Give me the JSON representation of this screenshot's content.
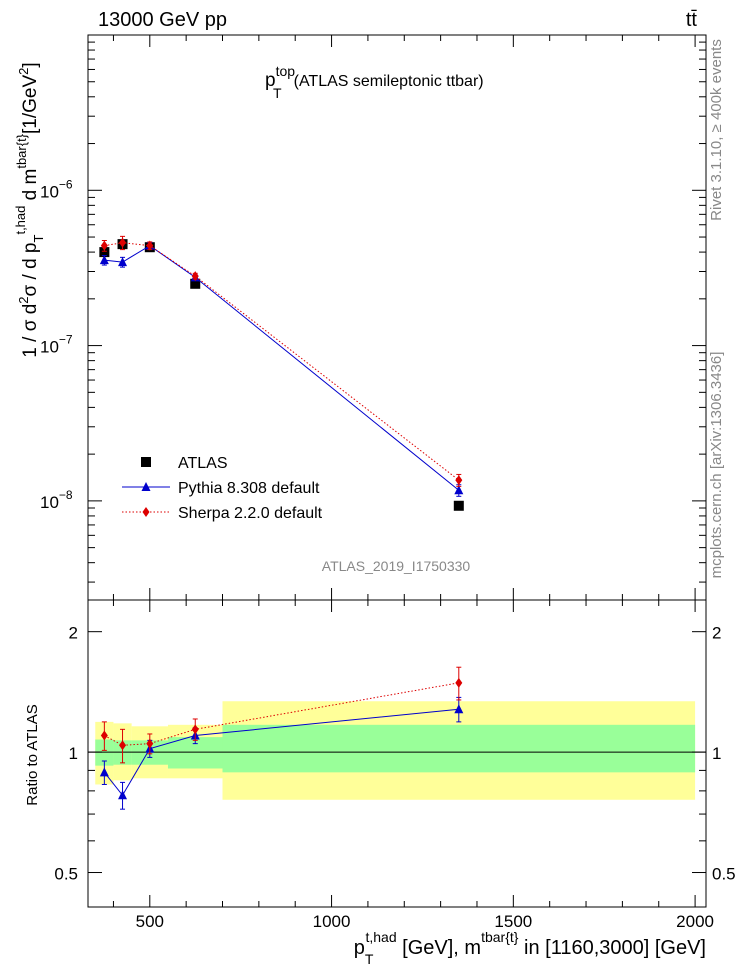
{
  "header": {
    "left": "13000 GeV pp",
    "right": "tt̄"
  },
  "side_labels": {
    "rivet": "Rivet 3.1.10, ≥ 400k events",
    "mcplots": "mcplots.cern.ch [arXiv:1306.3436]"
  },
  "title": {
    "main": "p",
    "sup": "top",
    "sub": "T",
    "rest": "(ATLAS semileptonic ttbar)"
  },
  "analysis_id": "ATLAS_2019_I1750330",
  "ylabel_main": "1 / σ d²σ / d p_T^{t,had} d m^{tbar{t}} [1/GeV²]",
  "ylabel_ratio": "Ratio to ATLAS",
  "xlabel": "p_T^{t,had} [GeV], m^{tbar{t}} in [1160,3000] [GeV]",
  "legend": [
    {
      "name": "ATLAS",
      "marker": "square",
      "color": "#000000"
    },
    {
      "name": "Pythia 8.308 default",
      "marker": "triangle",
      "color": "#0000cc"
    },
    {
      "name": "Sherpa 2.2.0 default",
      "marker": "diamond",
      "color": "#dd0000"
    }
  ],
  "chart_data": [
    {
      "type": "line",
      "panel": "main",
      "yscale": "log",
      "xlim": [
        330,
        2030
      ],
      "ylim": [
        2.3e-09,
        1e-05
      ],
      "x_ticks": [
        500,
        1000,
        1500,
        2000
      ],
      "y_ticks": [
        {
          "value": 1e-08,
          "mantissa": "10",
          "exp": "−8"
        },
        {
          "value": 1e-07,
          "mantissa": "10",
          "exp": "−7"
        },
        {
          "value": 1e-06,
          "mantissa": "10",
          "exp": "−6"
        }
      ],
      "series": [
        {
          "name": "ATLAS",
          "color": "#000000",
          "x": [
            375,
            425,
            500,
            625,
            1350
          ],
          "y": [
            4e-07,
            4.5e-07,
            4.3e-07,
            2.5e-07,
            9.3e-09
          ]
        },
        {
          "name": "Pythia 8.308 default",
          "color": "#0000cc",
          "x": [
            375,
            425,
            500,
            625,
            1350
          ],
          "y": [
            3.55e-07,
            3.45e-07,
            4.4e-07,
            2.75e-07,
            1.17e-08
          ],
          "err": [
            2.5e-08,
            2.5e-08,
            2e-08,
            1e-08,
            1e-09
          ]
        },
        {
          "name": "Sherpa 2.2.0 default",
          "color": "#dd0000",
          "x": [
            375,
            425,
            500,
            625,
            1350
          ],
          "y": [
            4.4e-07,
            4.6e-07,
            4.4e-07,
            2.8e-07,
            1.36e-08
          ],
          "err": [
            3.5e-08,
            4.5e-08,
            2.5e-08,
            1.2e-08,
            1.2e-09
          ]
        }
      ]
    },
    {
      "type": "line",
      "panel": "ratio",
      "yscale": "log",
      "xlim": [
        330,
        2030
      ],
      "ylim": [
        0.41,
        2.4
      ],
      "x_ticks": [
        500,
        1000,
        1500,
        2000
      ],
      "y_ticks": [
        0.5,
        1,
        2
      ],
      "bands": [
        {
          "x0": 350,
          "x1": 400,
          "inner": [
            0.925,
            1.075
          ],
          "outer": [
            0.83,
            1.19
          ]
        },
        {
          "x0": 400,
          "x1": 450,
          "inner": [
            0.93,
            1.07
          ],
          "outer": [
            0.85,
            1.18
          ]
        },
        {
          "x0": 450,
          "x1": 550,
          "inner": [
            0.93,
            1.07
          ],
          "outer": [
            0.86,
            1.16
          ]
        },
        {
          "x0": 550,
          "x1": 700,
          "inner": [
            0.91,
            1.09
          ],
          "outer": [
            0.86,
            1.17
          ]
        },
        {
          "x0": 700,
          "x1": 2000,
          "inner": [
            0.89,
            1.17
          ],
          "outer": [
            0.76,
            1.34
          ]
        }
      ],
      "series": [
        {
          "name": "Pythia 8.308 default",
          "color": "#0000cc",
          "x": [
            375,
            425,
            500,
            625,
            1350
          ],
          "y": [
            0.89,
            0.78,
            1.02,
            1.1,
            1.28
          ],
          "err": [
            0.06,
            0.06,
            0.05,
            0.05,
            0.09
          ]
        },
        {
          "name": "Sherpa 2.2.0 default",
          "color": "#dd0000",
          "x": [
            375,
            425,
            500,
            625,
            1350
          ],
          "y": [
            1.1,
            1.04,
            1.05,
            1.14,
            1.49
          ],
          "err": [
            0.09,
            0.1,
            0.06,
            0.07,
            0.14
          ]
        }
      ]
    }
  ]
}
